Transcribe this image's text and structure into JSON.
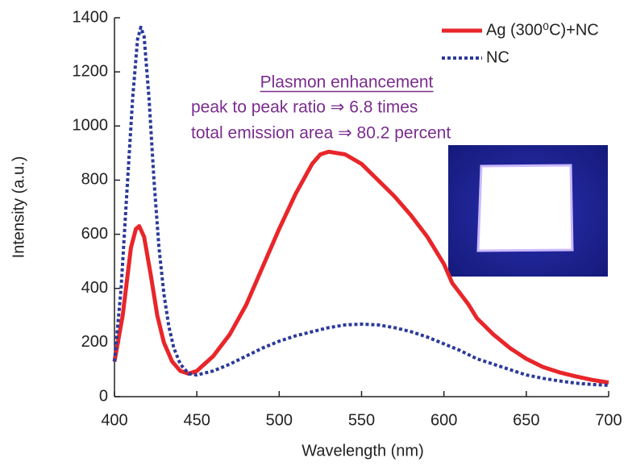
{
  "chart_data": {
    "type": "line",
    "x_label": "Wavelength (nm)",
    "y_label": "Intensity (a.u.)",
    "xlim": [
      400,
      700
    ],
    "xticks": [
      400,
      450,
      500,
      550,
      600,
      650,
      700
    ],
    "ylim": [
      0,
      1400
    ],
    "yticks": [
      0,
      200,
      400,
      600,
      800,
      1000,
      1200,
      1400
    ],
    "legend": "upper right",
    "annotations": [
      "Plasmon enhancement",
      "peak to peak ratio  ⇒  6.8 times",
      "total emission area ⇒ 80.2 percent"
    ],
    "series": [
      {
        "name": "Ag (300⁰C)+NC",
        "color": "#e8262a",
        "style": "solid",
        "x": [
          400,
          405,
          410,
          413,
          415,
          418,
          422,
          426,
          430,
          435,
          440,
          445,
          450,
          460,
          470,
          480,
          490,
          500,
          510,
          520,
          525,
          530,
          540,
          550,
          560,
          570,
          580,
          590,
          600,
          605,
          610,
          615,
          620,
          630,
          640,
          650,
          660,
          670,
          680,
          690,
          700
        ],
        "values": [
          130,
          300,
          550,
          620,
          630,
          590,
          450,
          300,
          200,
          130,
          95,
          85,
          95,
          150,
          230,
          340,
          480,
          620,
          750,
          860,
          895,
          905,
          895,
          860,
          800,
          740,
          670,
          590,
          490,
          420,
          380,
          340,
          290,
          230,
          180,
          140,
          110,
          90,
          75,
          62,
          52
        ]
      },
      {
        "name": "NC",
        "color": "#2b3a9a",
        "style": "dotted",
        "x": [
          400,
          404,
          408,
          411,
          414,
          416,
          418,
          421,
          424,
          427,
          430,
          433,
          436,
          440,
          445,
          450,
          460,
          470,
          480,
          490,
          500,
          510,
          520,
          530,
          540,
          550,
          560,
          570,
          580,
          590,
          600,
          610,
          620,
          630,
          640,
          650,
          660,
          670,
          680,
          690,
          700
        ],
        "values": [
          130,
          400,
          800,
          1100,
          1320,
          1365,
          1330,
          1100,
          800,
          550,
          380,
          260,
          180,
          120,
          85,
          80,
          95,
          120,
          150,
          180,
          205,
          225,
          240,
          255,
          265,
          268,
          265,
          255,
          240,
          220,
          195,
          170,
          140,
          120,
          100,
          80,
          68,
          58,
          50,
          45,
          42
        ]
      }
    ]
  }
}
